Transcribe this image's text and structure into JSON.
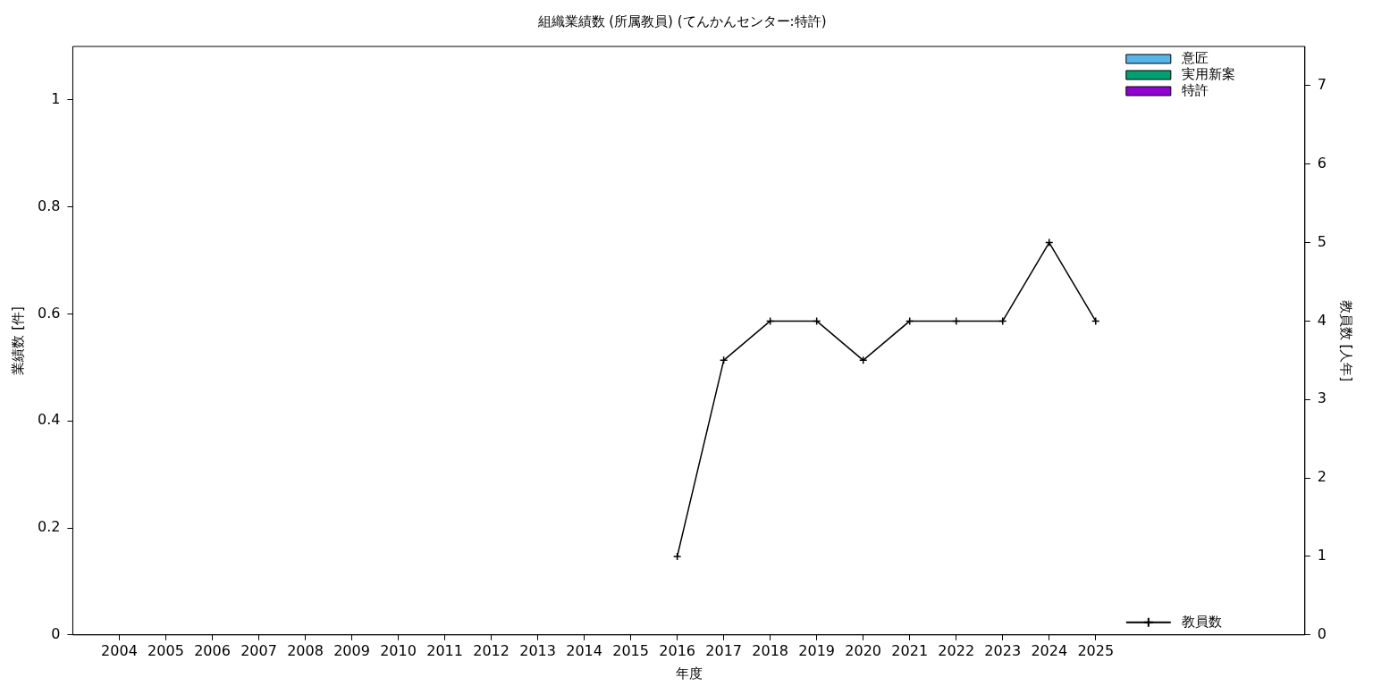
{
  "chart_data": {
    "type": "bar",
    "title": "組織業績数 (所属教員) (てんかんセンター:特許)",
    "xlabel": "年度",
    "ylabel": "業績数 [件]",
    "y2label": "教員数 [人年]",
    "xlim": [
      2003,
      2029.5
    ],
    "xticks": [
      2004,
      2005,
      2006,
      2007,
      2008,
      2009,
      2010,
      2011,
      2012,
      2013,
      2014,
      2015,
      2016,
      2017,
      2018,
      2019,
      2020,
      2021,
      2022,
      2023,
      2024,
      2025
    ],
    "ylim": [
      0,
      1.1
    ],
    "yticks": [
      0,
      0.2,
      0.4,
      0.6,
      0.8,
      1
    ],
    "y2lim": [
      0,
      7.5
    ],
    "y2ticks": [
      0,
      1,
      2,
      3,
      4,
      5,
      6,
      7
    ],
    "legend": "top right",
    "grid": false,
    "series": [
      {
        "name": "意匠",
        "color": "#56b4e9"
      },
      {
        "name": "実用新案",
        "color": "#009e73"
      },
      {
        "name": "特許",
        "color": "#9400d3"
      },
      {
        "name": "教員数",
        "type": "line",
        "axis": "y2",
        "color": "#000000",
        "marker": "cross",
        "line_style": "solid",
        "x": [
          2016,
          2017,
          2018,
          2019,
          2020,
          2021,
          2022,
          2023,
          2024,
          2025
        ],
        "values": [
          1,
          3.5,
          4,
          4,
          3.5,
          4,
          4,
          4,
          5,
          4
        ]
      }
    ]
  }
}
